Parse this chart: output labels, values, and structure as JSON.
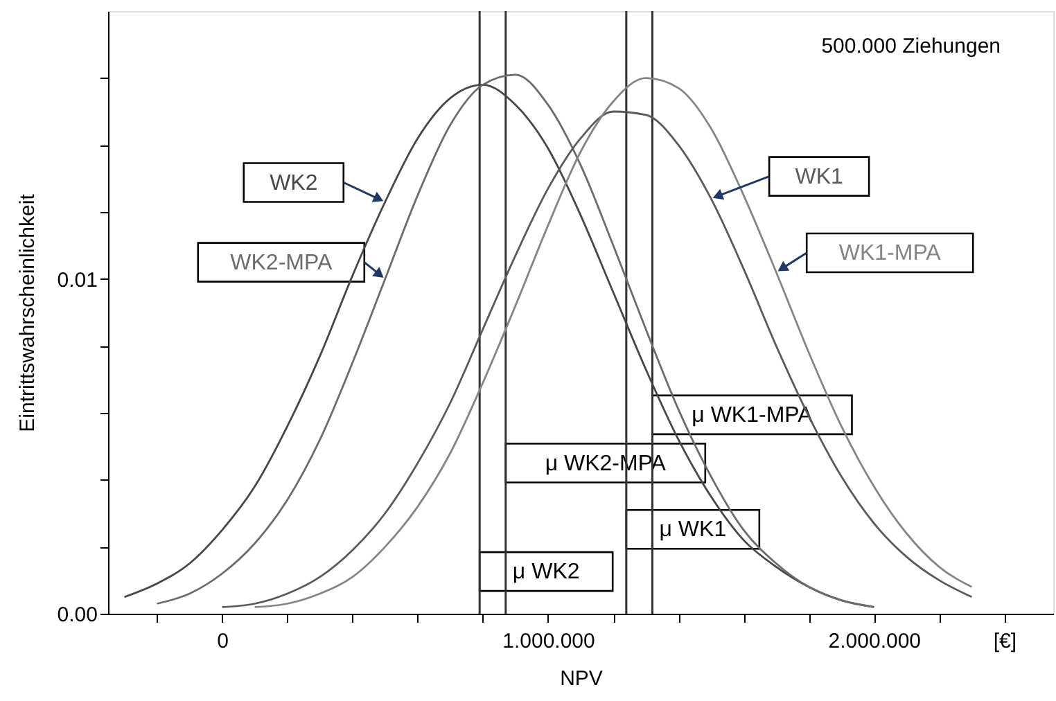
{
  "chart_data": {
    "type": "line",
    "xlabel": "NPV",
    "ylabel": "Eintrittswahrscheinlichkeit",
    "annotations": [
      "500.000 Ziehungen"
    ],
    "xlim": [
      -350000,
      2550000
    ],
    "xticks": [
      {
        "value": -200000,
        "label": null
      },
      {
        "value": 0,
        "label": "0"
      },
      {
        "value": 200000,
        "label": null
      },
      {
        "value": 400000,
        "label": null
      },
      {
        "value": 600000,
        "label": null
      },
      {
        "value": 800000,
        "label": null
      },
      {
        "value": 1000000,
        "label": "1.000.000"
      },
      {
        "value": 1200000,
        "label": null
      },
      {
        "value": 1400000,
        "label": null
      },
      {
        "value": 1600000,
        "label": null
      },
      {
        "value": 1800000,
        "label": null
      },
      {
        "value": 2000000,
        "label": "2.000.000"
      },
      {
        "value": 2200000,
        "label": null
      },
      {
        "value": 2400000,
        "label": "[€]"
      }
    ],
    "ylim": [
      0,
      0.018
    ],
    "yticks": [
      {
        "value": 0,
        "label": "0.00"
      },
      {
        "value": 0.002,
        "label": null
      },
      {
        "value": 0.004,
        "label": null
      },
      {
        "value": 0.006,
        "label": null
      },
      {
        "value": 0.008,
        "label": null
      },
      {
        "value": 0.01,
        "label": "0.01"
      },
      {
        "value": 0.012,
        "label": null
      },
      {
        "value": 0.014,
        "label": null
      },
      {
        "value": 0.016,
        "label": null
      }
    ],
    "grid": false,
    "legend": false,
    "marker": "none",
    "line_style": "solid",
    "series": [
      {
        "name": "WK2",
        "color": "#474747",
        "x": [
          -300000,
          -200000,
          -100000,
          0,
          100000,
          200000,
          300000,
          400000,
          500000,
          600000,
          700000,
          800000,
          900000,
          1000000,
          1100000,
          1200000,
          1300000,
          1400000,
          1500000,
          1600000,
          1700000,
          1800000,
          1900000,
          2000000
        ],
        "values": [
          0.0005,
          0.0009,
          0.0015,
          0.0025,
          0.0038,
          0.0056,
          0.0077,
          0.0101,
          0.0123,
          0.0142,
          0.0154,
          0.0158,
          0.0152,
          0.0139,
          0.0119,
          0.0096,
          0.0073,
          0.0052,
          0.0035,
          0.0022,
          0.0014,
          0.0008,
          0.0004,
          0.0002
        ]
      },
      {
        "name": "WK2-MPA",
        "color": "#6c6c6c",
        "x": [
          -200000,
          -100000,
          0,
          100000,
          200000,
          300000,
          400000,
          500000,
          600000,
          700000,
          800000,
          900000,
          1000000,
          1100000,
          1200000,
          1300000,
          1400000,
          1500000,
          1600000,
          1700000,
          1800000,
          1900000,
          2000000
        ],
        "values": [
          0.0003,
          0.0006,
          0.0012,
          0.0021,
          0.0034,
          0.0052,
          0.0075,
          0.01,
          0.0125,
          0.0146,
          0.0158,
          0.0161,
          0.0152,
          0.0134,
          0.011,
          0.0085,
          0.0061,
          0.0041,
          0.0025,
          0.0015,
          0.0008,
          0.0004,
          0.0002
        ]
      },
      {
        "name": "WK1",
        "color": "#5a5a5a",
        "x": [
          0,
          100000,
          200000,
          300000,
          400000,
          500000,
          600000,
          700000,
          800000,
          900000,
          1000000,
          1100000,
          1200000,
          1300000,
          1400000,
          1500000,
          1600000,
          1700000,
          1800000,
          1900000,
          2000000,
          2100000,
          2200000,
          2300000
        ],
        "values": [
          0.0002,
          0.0003,
          0.0006,
          0.0011,
          0.0019,
          0.003,
          0.0045,
          0.0063,
          0.0085,
          0.0107,
          0.0127,
          0.0142,
          0.015,
          0.0149,
          0.014,
          0.0124,
          0.0103,
          0.008,
          0.0059,
          0.0041,
          0.0027,
          0.0017,
          0.001,
          0.0005
        ]
      },
      {
        "name": "WK1-MPA",
        "color": "#858585",
        "x": [
          100000,
          200000,
          300000,
          400000,
          500000,
          600000,
          700000,
          800000,
          900000,
          1000000,
          1100000,
          1200000,
          1300000,
          1400000,
          1500000,
          1600000,
          1700000,
          1800000,
          1900000,
          2000000,
          2100000,
          2200000,
          2300000
        ],
        "values": [
          0.0002,
          0.0003,
          0.0006,
          0.0011,
          0.002,
          0.0032,
          0.0048,
          0.0069,
          0.0092,
          0.0116,
          0.0138,
          0.0153,
          0.016,
          0.0157,
          0.0145,
          0.0125,
          0.0102,
          0.0078,
          0.0056,
          0.0038,
          0.0024,
          0.0014,
          0.0008
        ]
      }
    ],
    "ref_lines": [
      {
        "axis": "x",
        "value": 790000,
        "label": "μ WK2",
        "color": "#333333"
      },
      {
        "axis": "x",
        "value": 870000,
        "label": "μ WK2-MPA",
        "color": "#333333"
      },
      {
        "axis": "x",
        "value": 1240000,
        "label": "μ WK1",
        "color": "#333333"
      },
      {
        "axis": "x",
        "value": 1320000,
        "label": "μ WK1-MPA",
        "color": "#333333"
      }
    ]
  }
}
